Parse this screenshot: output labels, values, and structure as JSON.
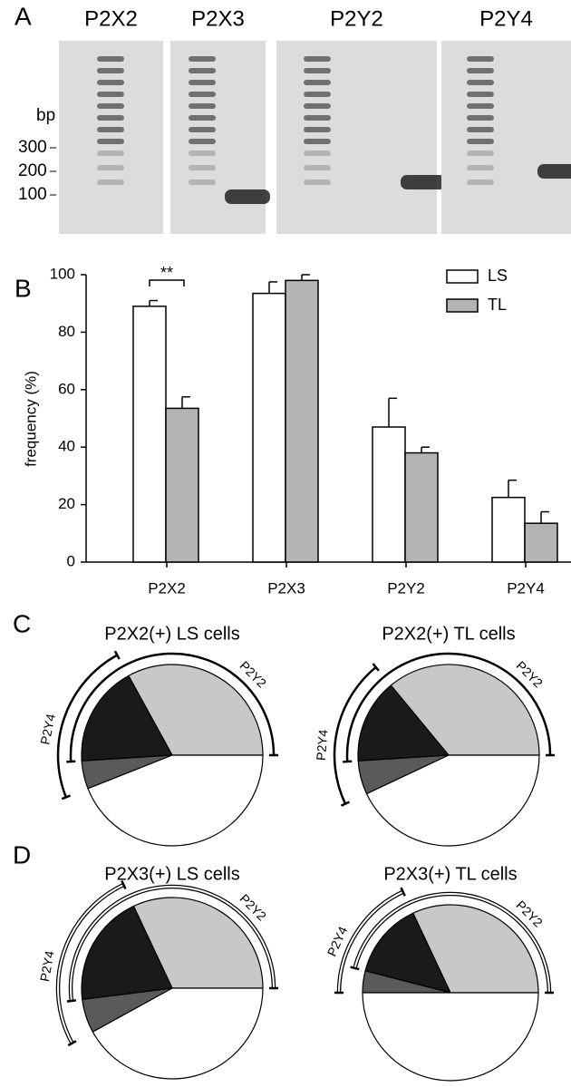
{
  "panel_labels": [
    "A",
    "B",
    "C",
    "D"
  ],
  "gel": {
    "lanes": [
      "P2X2",
      "P2X3",
      "P2Y2",
      "P2Y4"
    ],
    "size_label": "bp",
    "markers": [
      "300",
      "200",
      "100"
    ]
  },
  "chart_data": [
    {
      "type": "bar",
      "categories": [
        "P2X2",
        "P2X3",
        "P2Y2",
        "P2Y4"
      ],
      "y_label": "frequency (%)",
      "ylim": [
        0,
        100
      ],
      "yticks": [
        0,
        20,
        40,
        60,
        80,
        100
      ],
      "grid": false,
      "legend": "upper right",
      "annotation": "**",
      "series": [
        {
          "name": "LS",
          "color": "#ffffff",
          "values": [
            89,
            93.5,
            47,
            22.5
          ],
          "errors": [
            2,
            4,
            10,
            6
          ]
        },
        {
          "name": "TL",
          "color": "#b4b4b4",
          "values": [
            53.5,
            98,
            38,
            13.5
          ],
          "errors": [
            4,
            2,
            2,
            4
          ]
        }
      ]
    },
    {
      "type": "pie",
      "title": "P2X2(+) LS cells",
      "values": [
        33,
        18,
        5,
        44
      ],
      "colors": [
        "#c8c8c8",
        "#1a1a1a",
        "#5a5a5a",
        "#ffffff"
      ],
      "arc_labels": [
        "P2Y2",
        "P2Y4"
      ],
      "hollow_arcs": false
    },
    {
      "type": "pie",
      "title": "P2X2(+) TL cells",
      "values": [
        36,
        15,
        6,
        43
      ],
      "colors": [
        "#c8c8c8",
        "#1a1a1a",
        "#5a5a5a",
        "#ffffff"
      ],
      "arc_labels": [
        "P2Y2",
        "P2Y4"
      ],
      "hollow_arcs": false
    },
    {
      "type": "pie",
      "title": "P2X3(+) LS cells",
      "values": [
        32,
        20,
        6,
        42
      ],
      "colors": [
        "#c8c8c8",
        "#1a1a1a",
        "#5a5a5a",
        "#ffffff"
      ],
      "arc_labels": [
        "P2Y2",
        "P2Y4"
      ],
      "hollow_arcs": true
    },
    {
      "type": "pie",
      "title": "P2X3(+) TL cells",
      "values": [
        32,
        14,
        4,
        50
      ],
      "colors": [
        "#c8c8c8",
        "#1a1a1a",
        "#5a5a5a",
        "#ffffff"
      ],
      "arc_labels": [
        "P2Y2",
        "P2Y4"
      ],
      "hollow_arcs": true
    }
  ]
}
